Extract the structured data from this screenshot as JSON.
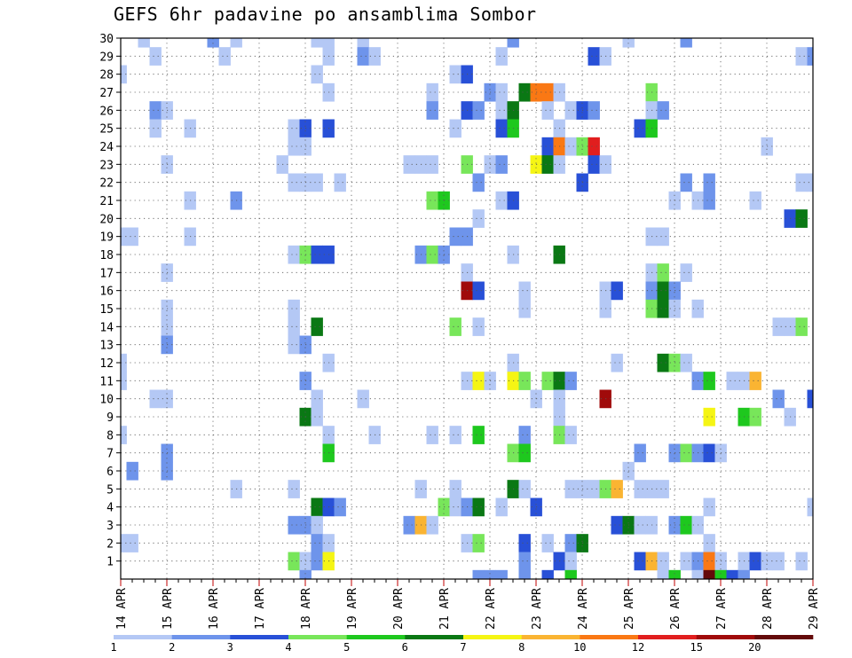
{
  "chart_data": {
    "type": "heatmap",
    "title": "GEFS 6hr padavine po ansamblima Sombor",
    "xlabel": "",
    "ylabel": "",
    "x_tick_labels": [
      "14 APR",
      "15 APR",
      "16 APR",
      "17 APR",
      "18 APR",
      "19 APR",
      "20 APR",
      "21 APR",
      "22 APR",
      "23 APR",
      "24 APR",
      "25 APR",
      "26 APR",
      "27 APR",
      "28 APR",
      "29 APR"
    ],
    "y_tick_labels": [
      "1",
      "2",
      "3",
      "4",
      "5",
      "6",
      "7",
      "8",
      "9",
      "10",
      "11",
      "12",
      "13",
      "14",
      "15",
      "16",
      "17",
      "18",
      "19",
      "20",
      "21",
      "22",
      "23",
      "24",
      "25",
      "26",
      "27",
      "28",
      "29",
      "30"
    ],
    "xlim": [
      0,
      60
    ],
    "ylim": [
      0,
      30
    ],
    "grid": true,
    "colorbar": {
      "labels": [
        "1",
        "2",
        "3",
        "4",
        "5",
        "6",
        "7",
        "8",
        "10",
        "12",
        "15",
        "20"
      ],
      "colors": [
        "#b4c8f5",
        "#6e94eb",
        "#2850d7",
        "#78e65a",
        "#1ec81e",
        "#0a7814",
        "#f5f514",
        "#fab432",
        "#fa7814",
        "#e11e1e",
        "#a00a0a",
        "#640a0a"
      ]
    },
    "values": [
      [
        30,
        2,
        1
      ],
      [
        30,
        8,
        2
      ],
      [
        30,
        10,
        1
      ],
      [
        30,
        17,
        1
      ],
      [
        30,
        18,
        1
      ],
      [
        30,
        21,
        1
      ],
      [
        30,
        34,
        2
      ],
      [
        30,
        44,
        1
      ],
      [
        30,
        49,
        2
      ],
      [
        29,
        3,
        1
      ],
      [
        29,
        9,
        1
      ],
      [
        29,
        18,
        1
      ],
      [
        29,
        21,
        2
      ],
      [
        29,
        22,
        1
      ],
      [
        29,
        33,
        1
      ],
      [
        29,
        41,
        3
      ],
      [
        29,
        42,
        1
      ],
      [
        29,
        59,
        1
      ],
      [
        29,
        60,
        2
      ],
      [
        28,
        0,
        1
      ],
      [
        28,
        17,
        1
      ],
      [
        28,
        29,
        1
      ],
      [
        28,
        30,
        3
      ],
      [
        27,
        18,
        1
      ],
      [
        27,
        27,
        1
      ],
      [
        27,
        32,
        2
      ],
      [
        27,
        33,
        1
      ],
      [
        27,
        35,
        6
      ],
      [
        27,
        36,
        9
      ],
      [
        27,
        37,
        9
      ],
      [
        27,
        38,
        1
      ],
      [
        27,
        46,
        4
      ],
      [
        26,
        3,
        2
      ],
      [
        26,
        4,
        1
      ],
      [
        26,
        27,
        2
      ],
      [
        26,
        30,
        3
      ],
      [
        26,
        31,
        2
      ],
      [
        26,
        33,
        1
      ],
      [
        26,
        34,
        6
      ],
      [
        26,
        37,
        1
      ],
      [
        26,
        39,
        1
      ],
      [
        26,
        40,
        3
      ],
      [
        26,
        41,
        2
      ],
      [
        26,
        46,
        1
      ],
      [
        26,
        47,
        2
      ],
      [
        25,
        3,
        1
      ],
      [
        25,
        6,
        1
      ],
      [
        25,
        15,
        1
      ],
      [
        25,
        16,
        3
      ],
      [
        25,
        18,
        3
      ],
      [
        25,
        29,
        1
      ],
      [
        25,
        33,
        3
      ],
      [
        25,
        34,
        5
      ],
      [
        25,
        38,
        1
      ],
      [
        25,
        45,
        3
      ],
      [
        25,
        46,
        5
      ],
      [
        24,
        15,
        1
      ],
      [
        24,
        16,
        1
      ],
      [
        24,
        37,
        3
      ],
      [
        24,
        38,
        9
      ],
      [
        24,
        39,
        1
      ],
      [
        24,
        40,
        4
      ],
      [
        24,
        41,
        10
      ],
      [
        24,
        56,
        1
      ],
      [
        23,
        4,
        1
      ],
      [
        23,
        14,
        1
      ],
      [
        23,
        25,
        1
      ],
      [
        23,
        26,
        1
      ],
      [
        23,
        27,
        1
      ],
      [
        23,
        30,
        4
      ],
      [
        23,
        32,
        1
      ],
      [
        23,
        33,
        2
      ],
      [
        23,
        36,
        7
      ],
      [
        23,
        37,
        6
      ],
      [
        23,
        38,
        1
      ],
      [
        23,
        41,
        3
      ],
      [
        23,
        42,
        1
      ],
      [
        22,
        15,
        1
      ],
      [
        22,
        16,
        1
      ],
      [
        22,
        17,
        1
      ],
      [
        22,
        19,
        1
      ],
      [
        22,
        31,
        2
      ],
      [
        22,
        40,
        3
      ],
      [
        22,
        49,
        2
      ],
      [
        22,
        51,
        2
      ],
      [
        22,
        59,
        1
      ],
      [
        22,
        60,
        1
      ],
      [
        21,
        6,
        1
      ],
      [
        21,
        10,
        2
      ],
      [
        21,
        27,
        4
      ],
      [
        21,
        28,
        5
      ],
      [
        21,
        33,
        1
      ],
      [
        21,
        34,
        3
      ],
      [
        21,
        48,
        1
      ],
      [
        21,
        50,
        1
      ],
      [
        21,
        51,
        2
      ],
      [
        21,
        55,
        1
      ],
      [
        20,
        31,
        1
      ],
      [
        20,
        58,
        3
      ],
      [
        20,
        59,
        6
      ],
      [
        19,
        0,
        1
      ],
      [
        19,
        1,
        1
      ],
      [
        19,
        6,
        1
      ],
      [
        19,
        29,
        2
      ],
      [
        19,
        30,
        2
      ],
      [
        19,
        46,
        1
      ],
      [
        19,
        47,
        1
      ],
      [
        18,
        15,
        1
      ],
      [
        18,
        16,
        4
      ],
      [
        18,
        17,
        3
      ],
      [
        18,
        18,
        3
      ],
      [
        18,
        26,
        2
      ],
      [
        18,
        27,
        4
      ],
      [
        18,
        28,
        2
      ],
      [
        18,
        34,
        1
      ],
      [
        18,
        38,
        6
      ],
      [
        17,
        4,
        1
      ],
      [
        17,
        30,
        1
      ],
      [
        17,
        46,
        1
      ],
      [
        17,
        47,
        4
      ],
      [
        17,
        49,
        1
      ],
      [
        16,
        30,
        11
      ],
      [
        16,
        31,
        3
      ],
      [
        16,
        35,
        1
      ],
      [
        16,
        42,
        1
      ],
      [
        16,
        43,
        3
      ],
      [
        16,
        46,
        2
      ],
      [
        16,
        47,
        6
      ],
      [
        16,
        48,
        2
      ],
      [
        15,
        4,
        1
      ],
      [
        15,
        15,
        1
      ],
      [
        15,
        35,
        1
      ],
      [
        15,
        42,
        1
      ],
      [
        15,
        46,
        4
      ],
      [
        15,
        47,
        6
      ],
      [
        15,
        48,
        1
      ],
      [
        15,
        50,
        1
      ],
      [
        14,
        4,
        1
      ],
      [
        14,
        15,
        1
      ],
      [
        14,
        17,
        6
      ],
      [
        14,
        29,
        4
      ],
      [
        14,
        31,
        1
      ],
      [
        14,
        57,
        1
      ],
      [
        14,
        58,
        1
      ],
      [
        14,
        59,
        4
      ],
      [
        13,
        4,
        2
      ],
      [
        13,
        15,
        1
      ],
      [
        13,
        16,
        2
      ],
      [
        12,
        0,
        1
      ],
      [
        12,
        18,
        1
      ],
      [
        12,
        34,
        1
      ],
      [
        12,
        43,
        1
      ],
      [
        12,
        47,
        6
      ],
      [
        12,
        48,
        4
      ],
      [
        12,
        49,
        1
      ],
      [
        11,
        0,
        1
      ],
      [
        11,
        16,
        2
      ],
      [
        11,
        30,
        1
      ],
      [
        11,
        31,
        7
      ],
      [
        11,
        32,
        1
      ],
      [
        11,
        34,
        7
      ],
      [
        11,
        35,
        4
      ],
      [
        11,
        37,
        4
      ],
      [
        11,
        38,
        6
      ],
      [
        11,
        39,
        2
      ],
      [
        11,
        50,
        2
      ],
      [
        11,
        51,
        5
      ],
      [
        11,
        53,
        1
      ],
      [
        11,
        54,
        1
      ],
      [
        11,
        55,
        8
      ],
      [
        10,
        3,
        1
      ],
      [
        10,
        4,
        1
      ],
      [
        10,
        17,
        1
      ],
      [
        10,
        21,
        1
      ],
      [
        10,
        36,
        1
      ],
      [
        10,
        38,
        1
      ],
      [
        10,
        42,
        11
      ],
      [
        10,
        57,
        2
      ],
      [
        10,
        60,
        3
      ],
      [
        9,
        16,
        6
      ],
      [
        9,
        17,
        1
      ],
      [
        9,
        38,
        1
      ],
      [
        9,
        51,
        7
      ],
      [
        9,
        54,
        5
      ],
      [
        9,
        55,
        4
      ],
      [
        9,
        58,
        1
      ],
      [
        8,
        0,
        1
      ],
      [
        8,
        18,
        1
      ],
      [
        8,
        22,
        1
      ],
      [
        8,
        27,
        1
      ],
      [
        8,
        29,
        1
      ],
      [
        8,
        31,
        5
      ],
      [
        8,
        35,
        2
      ],
      [
        8,
        38,
        4
      ],
      [
        8,
        39,
        1
      ],
      [
        7,
        4,
        2
      ],
      [
        7,
        18,
        5
      ],
      [
        7,
        34,
        4
      ],
      [
        7,
        35,
        5
      ],
      [
        7,
        45,
        2
      ],
      [
        7,
        48,
        2
      ],
      [
        7,
        49,
        4
      ],
      [
        7,
        50,
        2
      ],
      [
        7,
        51,
        3
      ],
      [
        7,
        52,
        1
      ],
      [
        6,
        1,
        2
      ],
      [
        6,
        4,
        2
      ],
      [
        6,
        44,
        1
      ],
      [
        5,
        10,
        1
      ],
      [
        5,
        15,
        1
      ],
      [
        5,
        26,
        1
      ],
      [
        5,
        29,
        1
      ],
      [
        5,
        34,
        6
      ],
      [
        5,
        35,
        1
      ],
      [
        5,
        39,
        1
      ],
      [
        5,
        40,
        1
      ],
      [
        5,
        41,
        1
      ],
      [
        5,
        42,
        4
      ],
      [
        5,
        43,
        8
      ],
      [
        5,
        45,
        1
      ],
      [
        5,
        46,
        1
      ],
      [
        5,
        47,
        1
      ],
      [
        4,
        17,
        6
      ],
      [
        4,
        18,
        3
      ],
      [
        4,
        19,
        2
      ],
      [
        4,
        28,
        4
      ],
      [
        4,
        29,
        1
      ],
      [
        4,
        30,
        2
      ],
      [
        4,
        31,
        6
      ],
      [
        4,
        33,
        1
      ],
      [
        4,
        36,
        3
      ],
      [
        4,
        51,
        1
      ],
      [
        4,
        60,
        1
      ],
      [
        3,
        15,
        2
      ],
      [
        3,
        16,
        2
      ],
      [
        3,
        17,
        1
      ],
      [
        3,
        25,
        2
      ],
      [
        3,
        26,
        8
      ],
      [
        3,
        27,
        1
      ],
      [
        3,
        43,
        3
      ],
      [
        3,
        44,
        6
      ],
      [
        3,
        45,
        1
      ],
      [
        3,
        46,
        1
      ],
      [
        3,
        48,
        2
      ],
      [
        3,
        49,
        5
      ],
      [
        3,
        50,
        1
      ],
      [
        2,
        0,
        1
      ],
      [
        2,
        1,
        1
      ],
      [
        2,
        17,
        2
      ],
      [
        2,
        18,
        1
      ],
      [
        2,
        30,
        1
      ],
      [
        2,
        31,
        4
      ],
      [
        2,
        35,
        3
      ],
      [
        2,
        37,
        1
      ],
      [
        2,
        39,
        2
      ],
      [
        2,
        40,
        6
      ],
      [
        2,
        51,
        1
      ],
      [
        1,
        15,
        4
      ],
      [
        1,
        16,
        1
      ],
      [
        1,
        17,
        2
      ],
      [
        1,
        18,
        7
      ],
      [
        1,
        35,
        2
      ],
      [
        1,
        38,
        3
      ],
      [
        1,
        39,
        1
      ],
      [
        1,
        45,
        3
      ],
      [
        1,
        46,
        8
      ],
      [
        1,
        47,
        1
      ],
      [
        1,
        49,
        1
      ],
      [
        1,
        50,
        2
      ],
      [
        1,
        51,
        9
      ],
      [
        1,
        52,
        1
      ],
      [
        1,
        54,
        1
      ],
      [
        1,
        55,
        3
      ],
      [
        1,
        56,
        1
      ],
      [
        1,
        57,
        1
      ],
      [
        1,
        59,
        1
      ],
      [
        0,
        16,
        2
      ],
      [
        0,
        31,
        2
      ],
      [
        0,
        32,
        2
      ],
      [
        0,
        33,
        2
      ],
      [
        0,
        35,
        2
      ],
      [
        0,
        37,
        3
      ],
      [
        0,
        39,
        5
      ],
      [
        0,
        47,
        1
      ],
      [
        0,
        48,
        5
      ],
      [
        0,
        50,
        1
      ],
      [
        0,
        51,
        12
      ],
      [
        0,
        52,
        5
      ],
      [
        0,
        53,
        3
      ],
      [
        0,
        54,
        2
      ]
    ]
  }
}
